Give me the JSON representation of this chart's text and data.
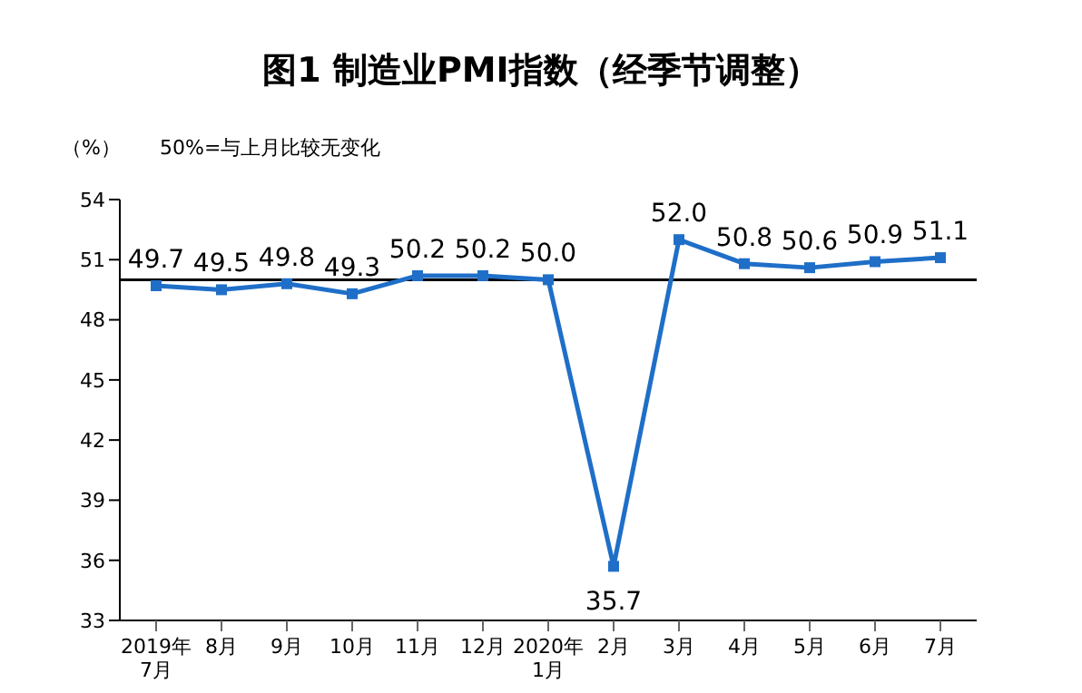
{
  "chart_data": {
    "type": "line",
    "title": "图1  制造业PMI指数（经季节调整）",
    "ylabel": "（%）",
    "annotations": [
      "50%=与上月比较无变化"
    ],
    "categories": [
      "2019年\n7月",
      "8月",
      "9月",
      "10月",
      "11月",
      "12月",
      "2020年\n1月",
      "2月",
      "3月",
      "4月",
      "5月",
      "6月",
      "7月"
    ],
    "series": [
      {
        "color": "#1f6fc8",
        "values": [
          49.7,
          49.5,
          49.8,
          49.3,
          50.2,
          50.2,
          50.0,
          35.7,
          52.0,
          50.8,
          50.6,
          50.9,
          51.1
        ],
        "value_labels": [
          "49.7",
          "49.5",
          "49.8",
          "49.3",
          "50.2",
          "50.2",
          "50.0",
          "35.7",
          "52.0",
          "50.8",
          "50.6",
          "50.9",
          "51.1"
        ]
      }
    ],
    "ylim": [
      33,
      54
    ],
    "yticks": [
      33,
      36,
      39,
      42,
      45,
      48,
      51,
      54
    ],
    "ref_lines": [
      {
        "axis": "y",
        "value": 50,
        "color": "#000000"
      }
    ],
    "marker": "square",
    "line_style": "solid",
    "grid": false,
    "legend": false
  }
}
